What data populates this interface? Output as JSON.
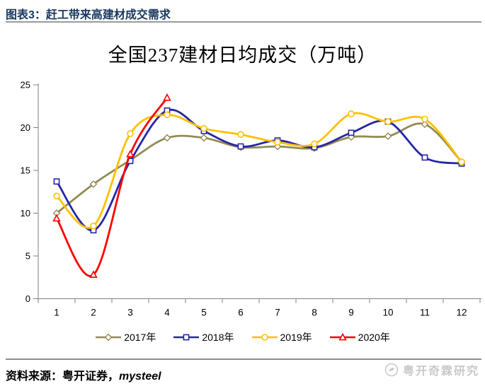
{
  "header": {
    "caption": "图表3：赶工带来高建材成交需求"
  },
  "chart_data": {
    "type": "line",
    "title": "全国237建材日均成交（万吨）",
    "xlabel": "",
    "ylabel": "",
    "categories": [
      "1",
      "2",
      "3",
      "4",
      "5",
      "6",
      "7",
      "8",
      "9",
      "10",
      "11",
      "12"
    ],
    "series": [
      {
        "name": "2017年",
        "color": "#948A54",
        "marker": "diamond",
        "values": [
          10.0,
          13.4,
          16.2,
          18.8,
          18.8,
          17.7,
          17.8,
          17.6,
          18.9,
          19.0,
          20.4,
          16.0
        ]
      },
      {
        "name": "2018年",
        "color": "#2626A6",
        "marker": "square",
        "values": [
          13.7,
          8.0,
          16.1,
          22.0,
          19.6,
          17.8,
          18.5,
          17.7,
          19.4,
          20.7,
          16.5,
          15.8
        ]
      },
      {
        "name": "2019年",
        "color": "#FFC000",
        "marker": "circle",
        "values": [
          12.0,
          8.5,
          19.3,
          21.5,
          19.9,
          19.2,
          18.3,
          18.1,
          21.6,
          20.7,
          21.0,
          16.0
        ]
      },
      {
        "name": "2020年",
        "color": "#FF0000",
        "marker": "triangle",
        "values": [
          9.4,
          2.8,
          16.9,
          23.5
        ]
      }
    ],
    "ylim": [
      0,
      25
    ],
    "ytick_step": 5,
    "grid": false,
    "smooth": true,
    "legend_position": "bottom"
  },
  "footer": {
    "source_prefix": "资料来源：粤开证券，",
    "source_italic": "mysteel",
    "watermark": "粤开奇霖研究"
  },
  "colors": {
    "axis": "#808080",
    "tick_label": "#000000",
    "header_text": "#17375E",
    "watermark_gray": "#c9c9c9"
  }
}
